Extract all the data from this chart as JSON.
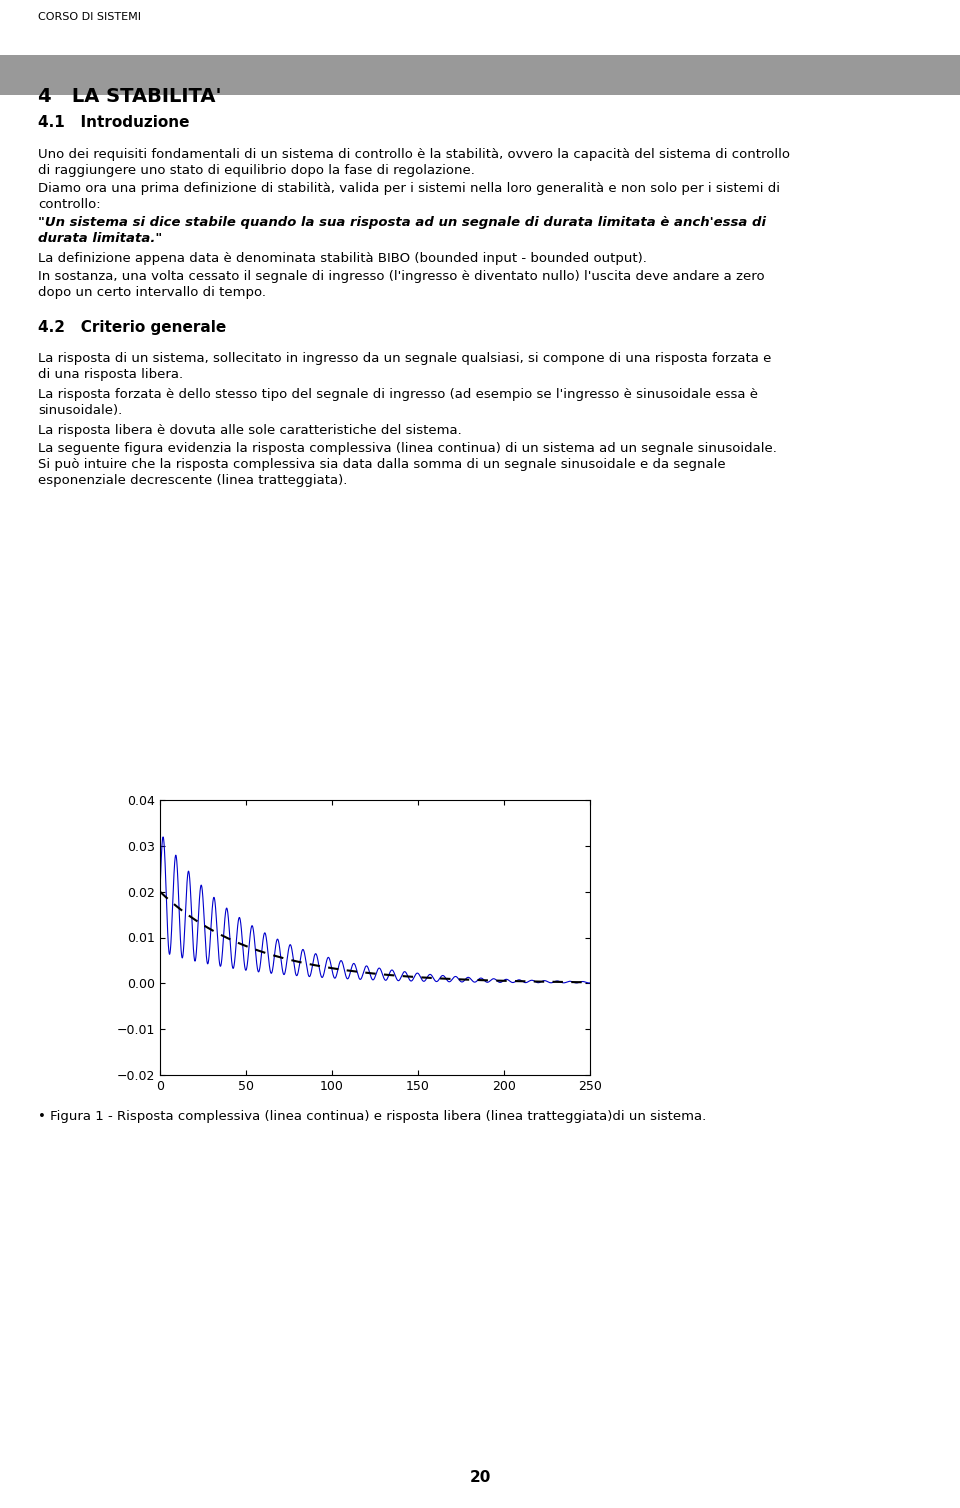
{
  "page_title": "CORSO DI SISTEMI",
  "chapter_title": "4   LA STABILITA'",
  "chapter_bg": "#999999",
  "section1_title": "4.1   Introduzione",
  "para1_line1": "Uno dei requisiti fondamentali di un sistema di controllo è la stabilità, ovvero la capacità del sistema di controllo",
  "para1_line2": "di raggiungere uno stato di equilibrio dopo la fase di regolazione.",
  "para2_line1": "Diamo ora una prima definizione di stabilità, valida per i sistemi nella loro generalità e non solo per i sistemi di",
  "para2_line2": "controllo:",
  "quote_line1": "\"Un sistema si dice stabile quando la sua risposta ad un segnale di durata limitata è anch'essa di",
  "quote_line2": "durata limitata.\"",
  "para3": "La definizione appena data è denominata stabilità BIBO (bounded input - bounded output).",
  "para4_line1": "In sostanza, una volta cessato il segnale di ingresso (l'ingresso è diventato nullo) l'uscita deve andare a zero",
  "para4_line2": "dopo un certo intervallo di tempo.",
  "section2_title": "4.2   Criterio generale",
  "para5_line1": "La risposta di un sistema, sollecitato in ingresso da un segnale qualsiasi, si compone di una risposta forzata e",
  "para5_line2": "di una risposta libera.",
  "para6_line1": "La risposta forzata è dello stesso tipo del segnale di ingresso (ad esempio se l'ingresso è sinusoidale essa è",
  "para6_line2": "sinusoidale).",
  "para7": "La risposta libera è dovuta alle sole caratteristiche del sistema.",
  "para8_line1": "La seguente figura evidenzia la risposta complessiva (linea continua) di un sistema ad un segnale sinusoidale.",
  "para8_line2": "Si può intuire che la risposta complessiva sia data dalla somma di un segnale sinusoidale e da segnale",
  "para8_line3": "esponenziale decrescente (linea tratteggiata).",
  "figure_caption": "• Figura 1 - Risposta complessiva (linea continua) e risposta libera (linea tratteggiata)di un sistema.",
  "plot_xlim": [
    0,
    250
  ],
  "plot_ylim": [
    -0.02,
    0.04
  ],
  "plot_yticks": [
    -0.02,
    -0.01,
    0,
    0.01,
    0.02,
    0.03,
    0.04
  ],
  "plot_xticks": [
    0,
    50,
    100,
    150,
    200,
    250
  ],
  "sine_color": "#0000cc",
  "exp_color": "#000000",
  "page_number": "20",
  "background_color": "#ffffff",
  "text_color": "#000000"
}
